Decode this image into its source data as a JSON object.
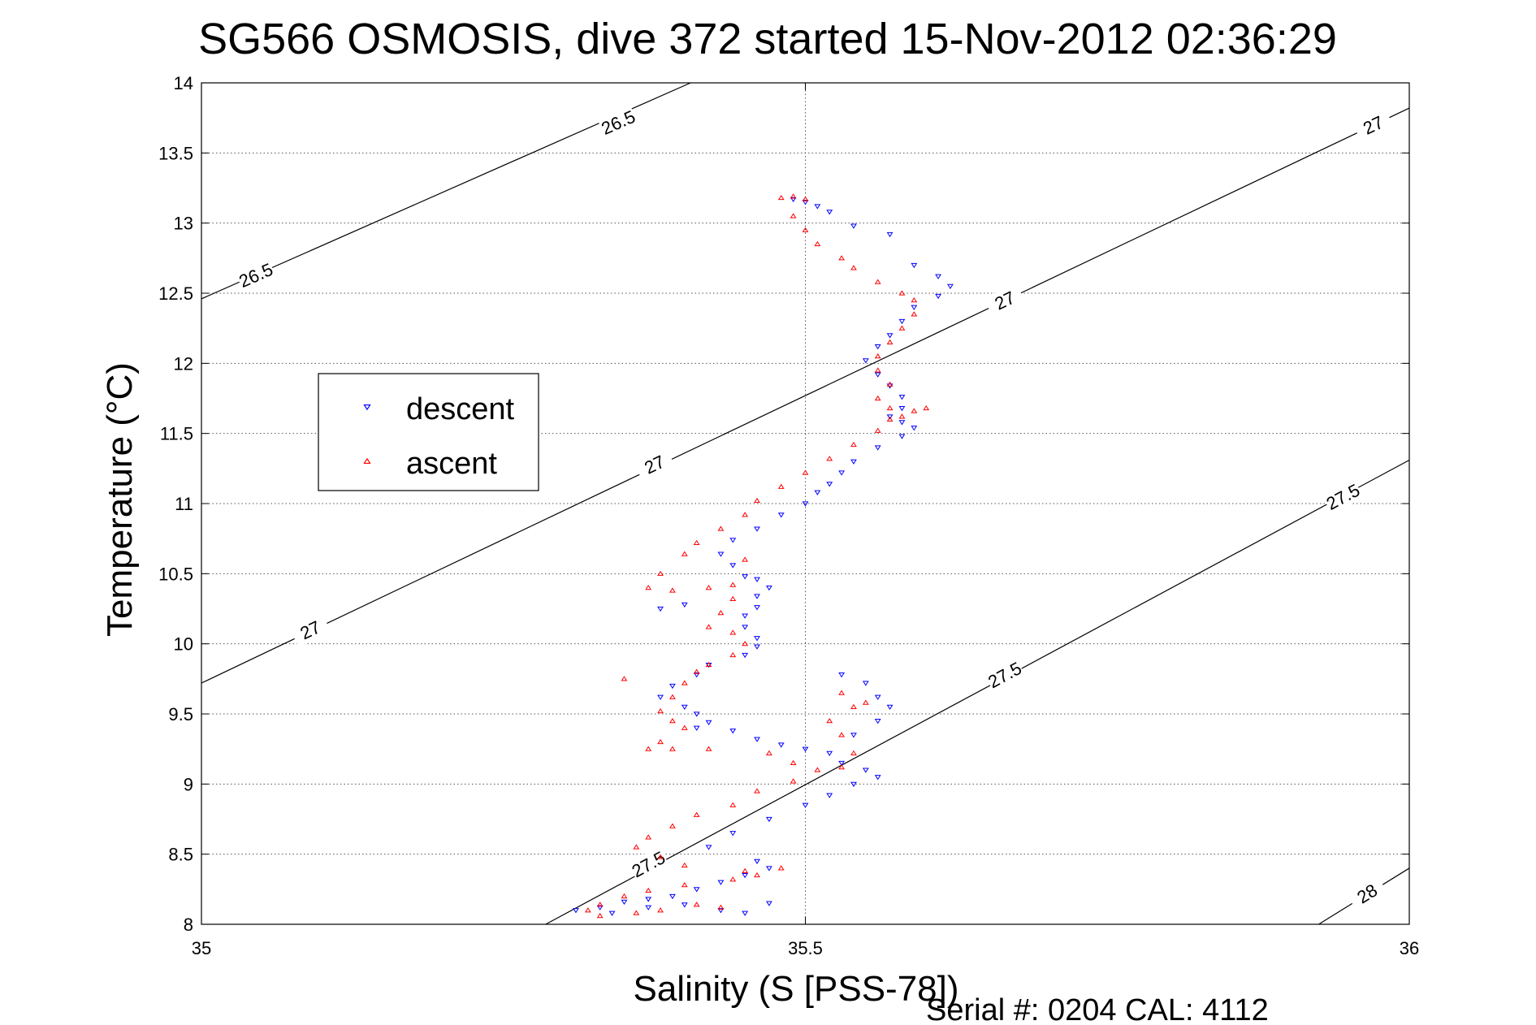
{
  "chart_data": {
    "type": "scatter",
    "title": "SG566 OSMOSIS, dive 372 started 15-Nov-2012 02:36:29",
    "xlabel": "Salinity (S [PSS-78])",
    "ylabel": "Temperature (°C)",
    "xlim": [
      35,
      36
    ],
    "ylim": [
      8,
      14
    ],
    "x_ticks": [
      "35",
      "35.5",
      "36"
    ],
    "y_ticks": [
      "8",
      "8.5",
      "9",
      "9.5",
      "10",
      "10.5",
      "11",
      "11.5",
      "12",
      "12.5",
      "13",
      "13.5",
      "14"
    ],
    "grid": true,
    "legend_position": "left",
    "footer": "Serial #: 0204  CAL: 4112",
    "series": [
      {
        "name": "descent",
        "color": "#0000ff",
        "marker": "triangle-down",
        "points": [
          [
            35.49,
            13.17
          ],
          [
            35.5,
            13.15
          ],
          [
            35.51,
            13.12
          ],
          [
            35.52,
            13.08
          ],
          [
            35.54,
            12.98
          ],
          [
            35.57,
            12.92
          ],
          [
            35.59,
            12.7
          ],
          [
            35.61,
            12.62
          ],
          [
            35.62,
            12.55
          ],
          [
            35.61,
            12.48
          ],
          [
            35.59,
            12.4
          ],
          [
            35.58,
            12.3
          ],
          [
            35.57,
            12.2
          ],
          [
            35.56,
            12.12
          ],
          [
            35.55,
            12.02
          ],
          [
            35.56,
            11.92
          ],
          [
            35.57,
            11.84
          ],
          [
            35.58,
            11.76
          ],
          [
            35.58,
            11.68
          ],
          [
            35.57,
            11.62
          ],
          [
            35.58,
            11.58
          ],
          [
            35.59,
            11.54
          ],
          [
            35.58,
            11.48
          ],
          [
            35.56,
            11.4
          ],
          [
            35.54,
            11.3
          ],
          [
            35.53,
            11.22
          ],
          [
            35.52,
            11.14
          ],
          [
            35.51,
            11.08
          ],
          [
            35.5,
            11.0
          ],
          [
            35.48,
            10.92
          ],
          [
            35.46,
            10.82
          ],
          [
            35.44,
            10.74
          ],
          [
            35.43,
            10.64
          ],
          [
            35.44,
            10.56
          ],
          [
            35.45,
            10.48
          ],
          [
            35.46,
            10.46
          ],
          [
            35.47,
            10.4
          ],
          [
            35.46,
            10.34
          ],
          [
            35.46,
            10.26
          ],
          [
            35.45,
            10.2
          ],
          [
            35.45,
            10.12
          ],
          [
            35.46,
            10.04
          ],
          [
            35.46,
            9.98
          ],
          [
            35.45,
            9.92
          ],
          [
            35.42,
            9.85
          ],
          [
            35.41,
            9.78
          ],
          [
            35.39,
            9.7
          ],
          [
            35.38,
            9.62
          ],
          [
            35.4,
            9.55
          ],
          [
            35.41,
            9.5
          ],
          [
            35.42,
            9.44
          ],
          [
            35.44,
            9.38
          ],
          [
            35.46,
            9.32
          ],
          [
            35.48,
            9.28
          ],
          [
            35.5,
            9.25
          ],
          [
            35.53,
            9.78
          ],
          [
            35.55,
            9.72
          ],
          [
            35.56,
            9.62
          ],
          [
            35.57,
            9.55
          ],
          [
            35.56,
            9.45
          ],
          [
            35.54,
            9.35
          ],
          [
            35.52,
            9.22
          ],
          [
            35.53,
            9.15
          ],
          [
            35.55,
            9.1
          ],
          [
            35.56,
            9.05
          ],
          [
            35.54,
            9.0
          ],
          [
            35.52,
            8.92
          ],
          [
            35.5,
            8.85
          ],
          [
            35.47,
            8.75
          ],
          [
            35.44,
            8.65
          ],
          [
            35.42,
            8.55
          ],
          [
            35.46,
            8.45
          ],
          [
            35.47,
            8.4
          ],
          [
            35.45,
            8.35
          ],
          [
            35.43,
            8.3
          ],
          [
            35.41,
            8.25
          ],
          [
            35.39,
            8.2
          ],
          [
            35.37,
            8.18
          ],
          [
            35.35,
            8.16
          ],
          [
            35.33,
            8.12
          ],
          [
            35.31,
            8.1
          ],
          [
            35.34,
            8.08
          ],
          [
            35.37,
            8.12
          ],
          [
            35.4,
            8.14
          ],
          [
            35.43,
            8.1
          ],
          [
            35.45,
            8.08
          ],
          [
            35.47,
            8.15
          ],
          [
            35.38,
            10.25
          ],
          [
            35.4,
            10.28
          ],
          [
            35.41,
            9.4
          ]
        ]
      },
      {
        "name": "ascent",
        "color": "#ff0000",
        "marker": "triangle-up",
        "points": [
          [
            35.48,
            13.18
          ],
          [
            35.49,
            13.19
          ],
          [
            35.5,
            13.17
          ],
          [
            35.49,
            13.05
          ],
          [
            35.5,
            12.95
          ],
          [
            35.51,
            12.85
          ],
          [
            35.53,
            12.75
          ],
          [
            35.54,
            12.68
          ],
          [
            35.56,
            12.58
          ],
          [
            35.58,
            12.5
          ],
          [
            35.59,
            12.45
          ],
          [
            35.59,
            12.35
          ],
          [
            35.58,
            12.25
          ],
          [
            35.57,
            12.15
          ],
          [
            35.56,
            12.05
          ],
          [
            35.56,
            11.95
          ],
          [
            35.57,
            11.85
          ],
          [
            35.56,
            11.75
          ],
          [
            35.57,
            11.68
          ],
          [
            35.59,
            11.66
          ],
          [
            35.6,
            11.68
          ],
          [
            35.58,
            11.62
          ],
          [
            35.56,
            11.52
          ],
          [
            35.54,
            11.42
          ],
          [
            35.52,
            11.32
          ],
          [
            35.5,
            11.22
          ],
          [
            35.48,
            11.12
          ],
          [
            35.46,
            11.02
          ],
          [
            35.45,
            10.92
          ],
          [
            35.43,
            10.82
          ],
          [
            35.41,
            10.72
          ],
          [
            35.4,
            10.64
          ],
          [
            35.38,
            10.5
          ],
          [
            35.37,
            10.4
          ],
          [
            35.39,
            10.38
          ],
          [
            35.42,
            10.4
          ],
          [
            35.44,
            10.42
          ],
          [
            35.44,
            10.32
          ],
          [
            35.43,
            10.22
          ],
          [
            35.42,
            10.12
          ],
          [
            35.44,
            10.08
          ],
          [
            35.45,
            10.0
          ],
          [
            35.44,
            9.92
          ],
          [
            35.42,
            9.85
          ],
          [
            35.41,
            9.8
          ],
          [
            35.4,
            9.72
          ],
          [
            35.39,
            9.62
          ],
          [
            35.38,
            9.52
          ],
          [
            35.39,
            9.45
          ],
          [
            35.4,
            9.4
          ],
          [
            35.38,
            9.3
          ],
          [
            35.37,
            9.25
          ],
          [
            35.39,
            9.25
          ],
          [
            35.42,
            9.25
          ],
          [
            35.47,
            9.22
          ],
          [
            35.49,
            9.15
          ],
          [
            35.51,
            9.1
          ],
          [
            35.53,
            9.12
          ],
          [
            35.54,
            9.22
          ],
          [
            35.53,
            9.35
          ],
          [
            35.52,
            9.45
          ],
          [
            35.54,
            9.55
          ],
          [
            35.55,
            9.58
          ],
          [
            35.53,
            9.65
          ],
          [
            35.49,
            9.02
          ],
          [
            35.46,
            8.95
          ],
          [
            35.44,
            8.85
          ],
          [
            35.41,
            8.78
          ],
          [
            35.39,
            8.7
          ],
          [
            35.37,
            8.62
          ],
          [
            35.36,
            8.55
          ],
          [
            35.38,
            8.48
          ],
          [
            35.4,
            8.42
          ],
          [
            35.45,
            8.38
          ],
          [
            35.46,
            8.35
          ],
          [
            35.44,
            8.32
          ],
          [
            35.4,
            8.28
          ],
          [
            35.37,
            8.24
          ],
          [
            35.35,
            8.2
          ],
          [
            35.33,
            8.14
          ],
          [
            35.32,
            8.1
          ],
          [
            35.33,
            8.06
          ],
          [
            35.36,
            8.08
          ],
          [
            35.38,
            8.1
          ],
          [
            35.41,
            8.14
          ],
          [
            35.43,
            8.12
          ],
          [
            35.35,
            9.75
          ],
          [
            35.45,
            10.6
          ],
          [
            35.57,
            11.6
          ],
          [
            35.48,
            8.4
          ]
        ]
      }
    ],
    "contours": [
      {
        "label": "26.5",
        "x": [
          35.0,
          35.405
        ],
        "y": [
          12.46,
          14.0
        ],
        "labels_at": [
          [
            35.045,
            12.63
          ],
          [
            35.345,
            13.72
          ]
        ]
      },
      {
        "label": "27",
        "x": [
          35.0,
          36.0
        ],
        "y": [
          9.72,
          13.82
        ],
        "labels_at": [
          [
            35.09,
            10.1
          ],
          [
            35.375,
            11.28
          ],
          [
            35.665,
            12.45
          ],
          [
            35.97,
            13.7
          ]
        ]
      },
      {
        "label": "27.5",
        "x": [
          35.285,
          36.0
        ],
        "y": [
          8.0,
          11.31
        ],
        "labels_at": [
          [
            35.37,
            8.43
          ],
          [
            35.665,
            9.78
          ],
          [
            35.945,
            11.05
          ]
        ]
      },
      {
        "label": "28",
        "x": [
          35.925,
          36.0
        ],
        "y": [
          8.0,
          8.4
        ],
        "labels_at": [
          [
            35.965,
            8.22
          ]
        ]
      }
    ]
  }
}
